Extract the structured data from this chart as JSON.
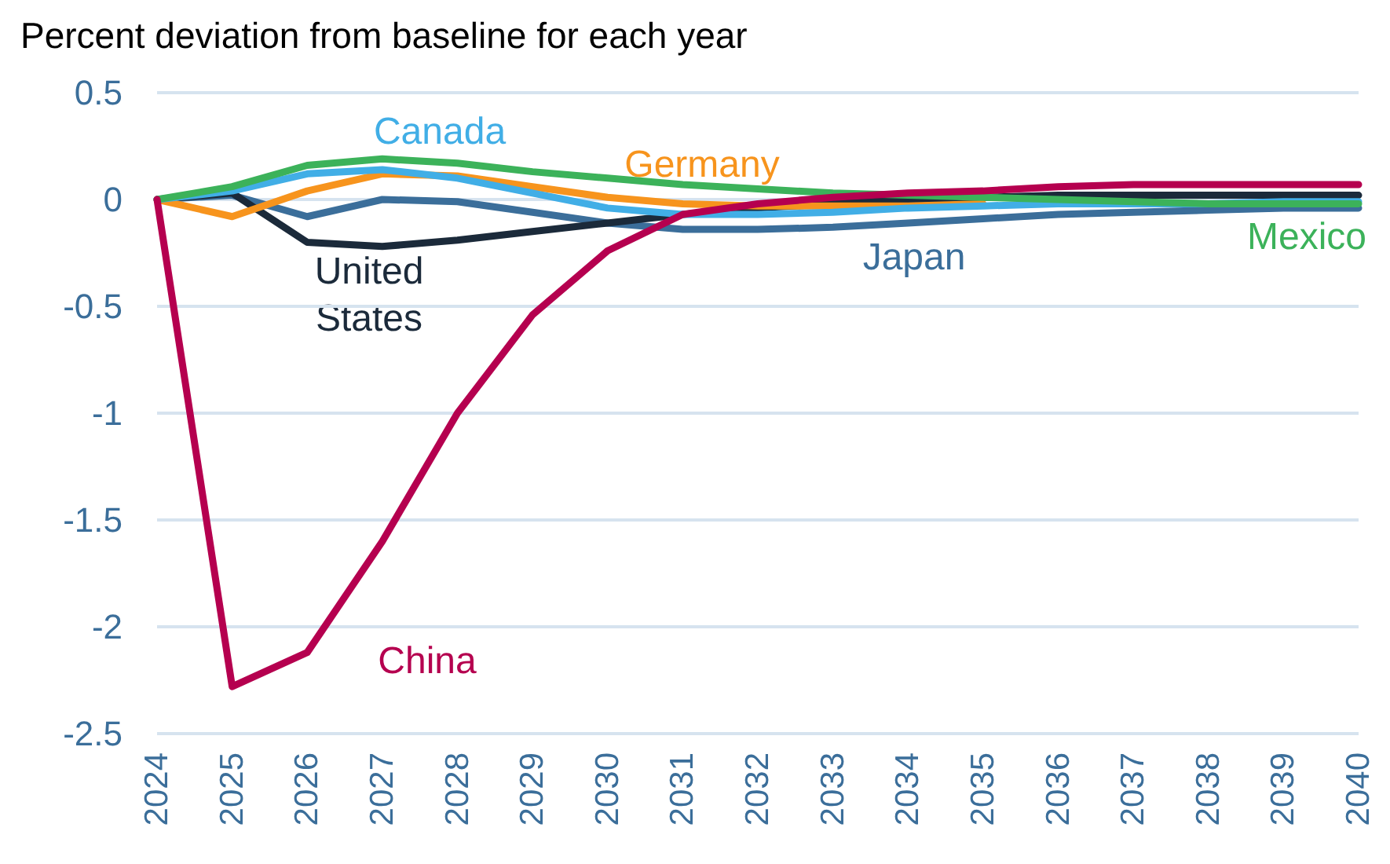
{
  "chart_data": {
    "type": "line",
    "title": "Percent deviation from baseline for each year",
    "categories": [
      "2024",
      "2025",
      "2026",
      "2027",
      "2028",
      "2029",
      "2030",
      "2031",
      "2032",
      "2033",
      "2034",
      "2035",
      "2036",
      "2037",
      "2038",
      "2039",
      "2040"
    ],
    "series": [
      {
        "name": "Japan",
        "color": "#3b6e9a",
        "values": [
          0,
          0.02,
          -0.08,
          0,
          -0.01,
          -0.06,
          -0.11,
          -0.14,
          -0.14,
          -0.13,
          -0.11,
          -0.09,
          -0.07,
          -0.06,
          -0.05,
          -0.04,
          -0.04
        ]
      },
      {
        "name": "United States",
        "color": "#1b2a3a",
        "values": [
          0,
          0.03,
          -0.2,
          -0.22,
          -0.19,
          -0.15,
          -0.11,
          -0.07,
          -0.04,
          -0.02,
          0,
          0.01,
          0.02,
          0.02,
          0.02,
          0.02,
          0.02
        ]
      },
      {
        "name": "Germany",
        "color": "#f7941d",
        "values": [
          0,
          -0.08,
          0.04,
          0.12,
          0.11,
          0.06,
          0.01,
          -0.02,
          -0.03,
          -0.03,
          -0.03,
          -0.02,
          null,
          null,
          null,
          null,
          null
        ]
      },
      {
        "name": "Canada",
        "color": "#41aee6",
        "values": [
          0,
          0.04,
          0.12,
          0.14,
          0.1,
          0.03,
          -0.04,
          -0.07,
          -0.07,
          -0.06,
          -0.04,
          -0.03,
          -0.02,
          -0.02,
          -0.02,
          -0.01,
          -0.01
        ]
      },
      {
        "name": "Mexico",
        "color": "#3cb25a",
        "values": [
          0,
          0.06,
          0.16,
          0.19,
          0.17,
          0.13,
          0.1,
          0.07,
          0.05,
          0.03,
          0.02,
          0.01,
          0,
          -0.01,
          -0.02,
          -0.02,
          -0.02
        ]
      },
      {
        "name": "China",
        "color": "#b5004f",
        "values": [
          0,
          -2.28,
          -2.12,
          -1.6,
          -1.0,
          -0.54,
          -0.24,
          -0.07,
          -0.02,
          0.01,
          0.03,
          0.04,
          0.06,
          0.07,
          0.07,
          0.07,
          0.07
        ]
      }
    ],
    "ylim": [
      -2.5,
      0.5
    ],
    "yticks": [
      -2.5,
      -2,
      -1.5,
      -1,
      -0.5,
      0,
      0.5
    ],
    "grid": "y",
    "legend": false,
    "marker": "none",
    "line_style": "solid"
  }
}
